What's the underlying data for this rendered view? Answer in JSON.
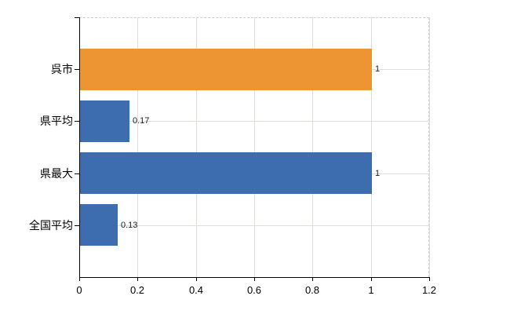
{
  "chart_data": {
    "type": "bar",
    "orientation": "horizontal",
    "title": "",
    "xlabel": "",
    "ylabel": "",
    "categories": [
      "呉市",
      "県平均",
      "県最大",
      "全国平均"
    ],
    "values": [
      1,
      0.17,
      1,
      0.13
    ],
    "value_labels": [
      "1",
      "0.17",
      "1",
      "0.13"
    ],
    "bar_colors": [
      "#ED9433",
      "#3D6DAE",
      "#3D6DAE",
      "#3D6DAE"
    ],
    "xlim": [
      0,
      1.2
    ],
    "x_ticks": [
      0,
      0.2,
      0.4,
      0.6,
      0.8,
      1,
      1.2
    ],
    "x_tick_labels": [
      "0",
      "0.2",
      "0.4",
      "0.6",
      "0.8",
      "1",
      "1.2"
    ],
    "grid": true,
    "legend": false
  },
  "colors": {
    "background": "#FFFFFF",
    "gridline": "#DBE0DB",
    "plot_border_dashed": "#D4CCD4",
    "axis": "#000000",
    "text": "#000000",
    "value_text": "#1A1A1A",
    "orange_bar": "#ED9433",
    "blue_bar": "#3D6DAE"
  }
}
